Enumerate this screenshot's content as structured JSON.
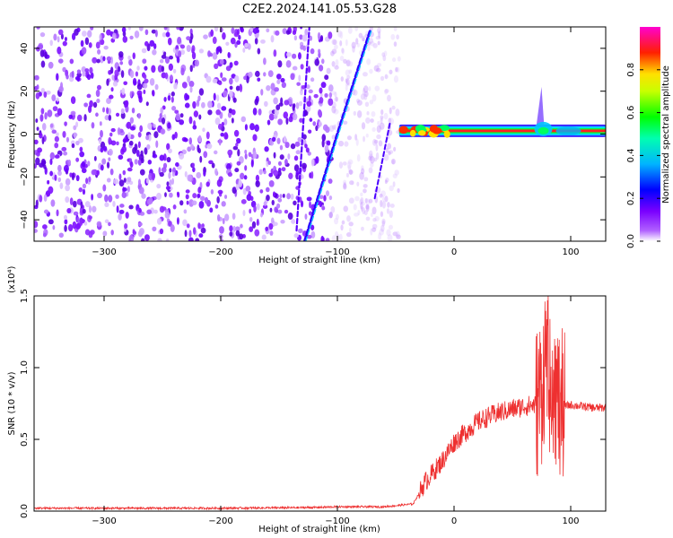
{
  "figure": {
    "title": "C2E2.2024.141.05.53.G28"
  },
  "chart_data": [
    {
      "type": "heatmap",
      "xlabel": "Height of straight line (km)",
      "ylabel": "Frequency (Hz)",
      "xlim": [
        -360,
        130
      ],
      "ylim": [
        -50,
        50
      ],
      "x_ticks": [
        -300,
        -200,
        -100,
        0,
        100
      ],
      "y_ticks": [
        -40,
        -20,
        0,
        20,
        40
      ],
      "colorbar": {
        "label": "Normalized spectral amplitude",
        "range": [
          0.0,
          1.0
        ],
        "ticks": [
          "0.0",
          "0.2",
          "0.4",
          "0.6",
          "0.8"
        ],
        "colormap": [
          "#ffffff",
          "#8a00ff",
          "#0000ff",
          "#00c8ff",
          "#00ff00",
          "#ffff00",
          "#ff0000",
          "#ff00c0"
        ]
      },
      "features": {
        "noise_region_x": [
          -360,
          -47
        ],
        "signal_line_frequency_hz": 1.5,
        "signal_line_x": [
          -47,
          130
        ],
        "doppler_streak_points": [
          [
            -128,
            -50
          ],
          [
            -100,
            0
          ],
          [
            -72,
            48
          ]
        ],
        "spike_x": 75
      }
    },
    {
      "type": "line",
      "xlabel": "Height of straight line (km)",
      "ylabel": "SNR (10 * v/v)",
      "y_multiplier": "(x10⁴)",
      "xlim": [
        -360,
        130
      ],
      "ylim": [
        0.0,
        1.5
      ],
      "x_ticks": [
        -300,
        -200,
        -100,
        0,
        100
      ],
      "y_ticks": [
        "0.0",
        "0.5",
        "1.0",
        "1.5"
      ],
      "color": "#ee3030",
      "series": [
        {
          "x": [
            -360,
            -300,
            -200,
            -120,
            -100,
            -60,
            -35,
            -25,
            -10,
            0,
            10,
            20,
            30,
            40,
            50,
            60,
            70,
            75,
            80,
            85,
            90,
            95,
            100,
            110,
            120,
            130
          ],
          "y": [
            0.02,
            0.02,
            0.02,
            0.025,
            0.03,
            0.03,
            0.05,
            0.2,
            0.35,
            0.48,
            0.55,
            0.62,
            0.66,
            0.69,
            0.71,
            0.73,
            0.74,
            0.85,
            1.2,
            0.95,
            0.72,
            0.73,
            0.74,
            0.73,
            0.72,
            0.72
          ]
        }
      ]
    }
  ]
}
